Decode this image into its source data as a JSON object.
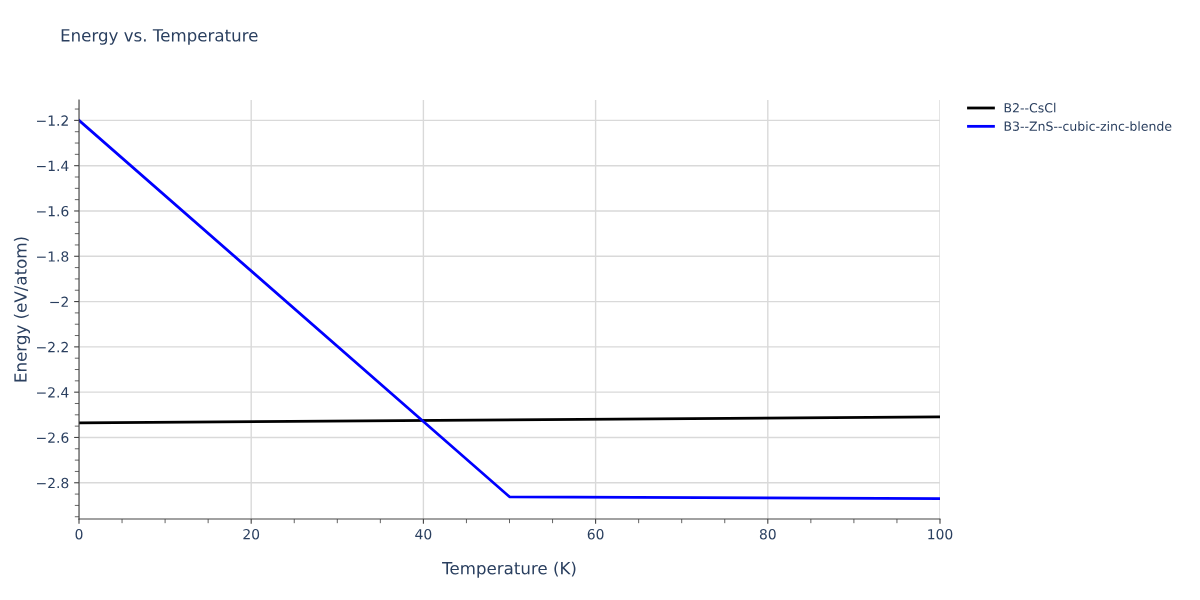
{
  "chart_data": {
    "type": "line",
    "title": "Energy vs. Temperature",
    "xlabel": "Temperature (K)",
    "ylabel": "Energy (eV/atom)",
    "series": [
      {
        "name": "B2--CsCl",
        "color": "#000000",
        "x": [
          0,
          100
        ],
        "values": [
          -2.536,
          -2.509
        ]
      },
      {
        "name": "B3--ZnS--cubic-zinc-blende",
        "color": "#0000ff",
        "x": [
          0,
          50,
          100
        ],
        "values": [
          -1.2,
          -2.862,
          -2.87
        ]
      }
    ],
    "xlim": [
      0,
      100
    ],
    "xticks": [
      0,
      20,
      40,
      60,
      80,
      100
    ],
    "ylim": [
      -2.96,
      -1.11
    ],
    "yticks": [
      {
        "value": -2.8,
        "label": "−2.8"
      },
      {
        "value": -2.6,
        "label": "−2.6"
      },
      {
        "value": -2.4,
        "label": "−2.4"
      },
      {
        "value": -2.2,
        "label": "−2.2"
      },
      {
        "value": -2,
        "label": "−2"
      },
      {
        "value": -1.8,
        "label": "−1.8"
      },
      {
        "value": -1.6,
        "label": "−1.6"
      },
      {
        "value": -1.4,
        "label": "−1.4"
      },
      {
        "value": -1.2,
        "label": "−1.2"
      }
    ],
    "grid": true,
    "legend": "top right",
    "marker": "none",
    "line_style": "solid"
  }
}
